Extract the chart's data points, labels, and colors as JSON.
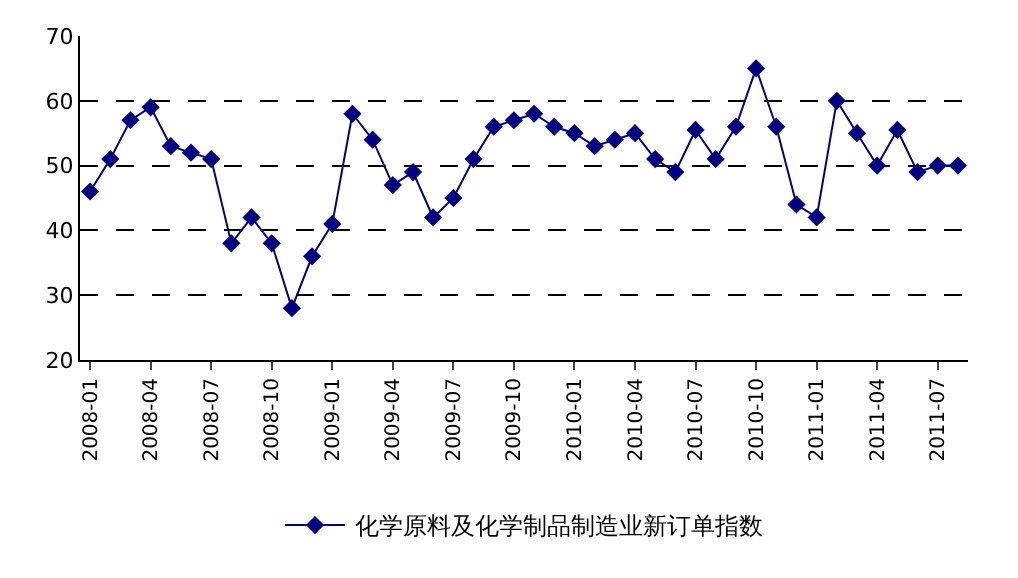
{
  "chart_data": {
    "type": "line",
    "categories": [
      "2008-01",
      null,
      null,
      "2008-04",
      null,
      null,
      "2008-07",
      null,
      null,
      "2008-10",
      null,
      null,
      "2009-01",
      null,
      null,
      "2009-04",
      null,
      null,
      "2009-07",
      null,
      null,
      "2009-10",
      null,
      null,
      "2010-01",
      null,
      null,
      "2010-04",
      null,
      null,
      "2010-07",
      null,
      null,
      "2010-10",
      null,
      null,
      "2011-01",
      null,
      null,
      "2011-04",
      null,
      null,
      "2011-07",
      null
    ],
    "series": [
      {
        "name": "化学原料及化学制品制造业新订单指数",
        "color": "#000080",
        "values": [
          46,
          51,
          57,
          59,
          53,
          52,
          51,
          38,
          42,
          38,
          28,
          36,
          41,
          58,
          54,
          47,
          49,
          42,
          45,
          51,
          56,
          57,
          58,
          56,
          55,
          53,
          54,
          55,
          51,
          49,
          55.5,
          51,
          56,
          65,
          56,
          44,
          42,
          60,
          55,
          50,
          55.5,
          49,
          50,
          50
        ]
      }
    ],
    "ylim": [
      20,
      70
    ],
    "yticks": [
      20,
      30,
      40,
      50,
      60,
      70
    ],
    "grid": "y",
    "legend": "bottom",
    "marker": "diamond",
    "line_style": "solid"
  }
}
